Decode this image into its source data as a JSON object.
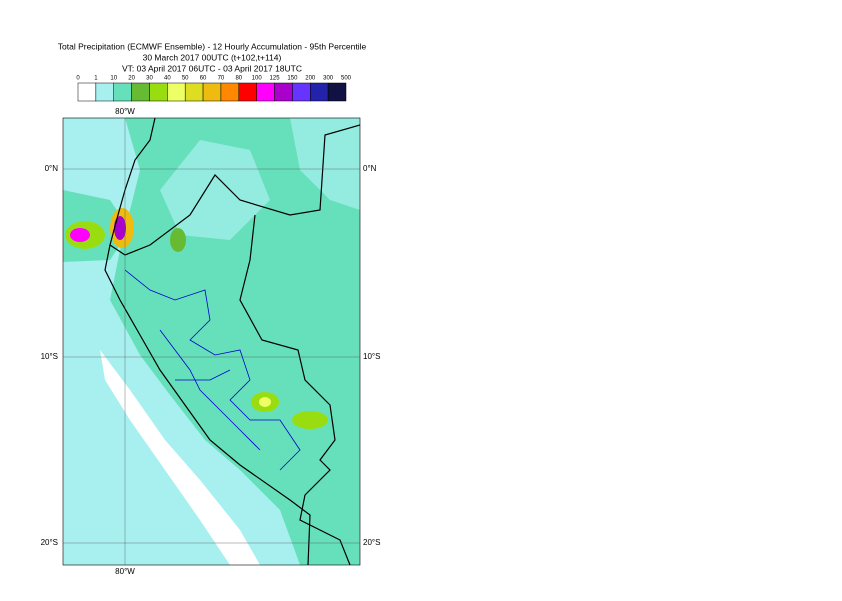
{
  "title": {
    "line1": "Total Precipitation (ECMWF Ensemble) - 12 Hourly Accumulation - 95th Percentile",
    "line2": "30 March 2017 00UTC (t+102,t+114)",
    "line3": "VT: 03 April 2017 06UTC - 03 April 2017 18UTC"
  },
  "legend": {
    "labels": [
      0,
      1,
      10,
      20,
      30,
      40,
      50,
      60,
      70,
      80,
      100,
      125,
      150,
      200,
      300,
      500
    ],
    "colors": [
      "#ffffff",
      "#a8f0f0",
      "#66e0bb",
      "#66bb33",
      "#99dd11",
      "#eeff66",
      "#dddd22",
      "#eebb11",
      "#ff8800",
      "#ff0000",
      "#ff00ff",
      "#aa00cc",
      "#6633ff",
      "#2222aa",
      "#111144"
    ]
  },
  "axes": {
    "lon_top": "80°W",
    "lon_bottom": "80°W",
    "lat_left": [
      "0°N",
      "10°S",
      "20°S"
    ],
    "lat_right": [
      "0°N",
      "10°S",
      "20°S"
    ]
  }
}
